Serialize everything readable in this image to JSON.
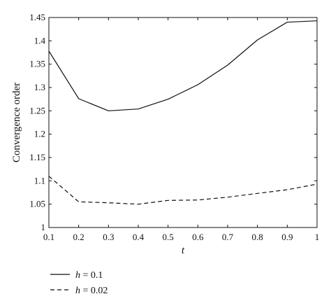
{
  "chart_data": {
    "type": "line",
    "xlabel": "t",
    "ylabel": "Convergence order",
    "xlim": [
      0.1,
      1
    ],
    "ylim": [
      1,
      1.45
    ],
    "x_ticks": [
      "0.1",
      "0.2",
      "0.3",
      "0.4",
      "0.5",
      "0.6",
      "0.7",
      "0.8",
      "0.9",
      "1"
    ],
    "y_ticks": [
      "1",
      "1.05",
      "1.1",
      "1.15",
      "1.2",
      "1.25",
      "1.3",
      "1.35",
      "1.4",
      "1.45"
    ],
    "grid": false,
    "legend_position": "bottom-left",
    "x": [
      0.1,
      0.2,
      0.3,
      0.4,
      0.5,
      0.6,
      0.7,
      0.8,
      0.9,
      1.0
    ],
    "series": [
      {
        "name": "h = 0.1",
        "legend_var": "h",
        "legend_value": "= 0.1",
        "style": "solid",
        "color": "#111111",
        "values": [
          1.378,
          1.276,
          1.25,
          1.254,
          1.275,
          1.306,
          1.348,
          1.402,
          1.44,
          1.443
        ]
      },
      {
        "name": "h = 0.02",
        "legend_var": "h",
        "legend_value": "= 0.02",
        "style": "dashed",
        "color": "#111111",
        "values": [
          1.11,
          1.055,
          1.053,
          1.05,
          1.058,
          1.059,
          1.065,
          1.073,
          1.081,
          1.093
        ]
      }
    ]
  }
}
